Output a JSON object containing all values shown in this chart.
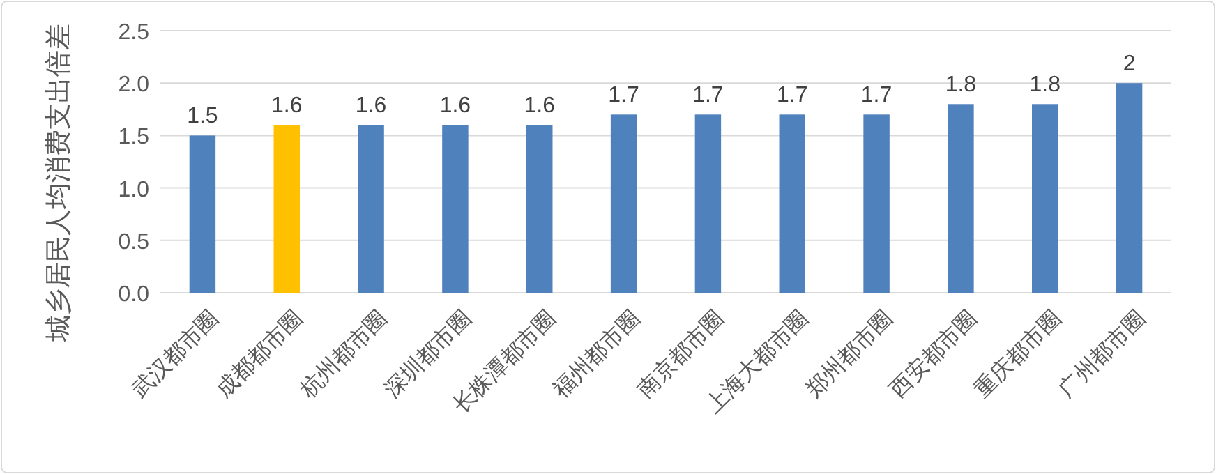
{
  "chart_data": {
    "type": "bar",
    "ylabel": "城乡居民人均消费支出倍差",
    "categories": [
      "武汉都市圈",
      "成都都市圈",
      "杭州都市圈",
      "深圳都市圈",
      "长株潭都市圈",
      "福州都市圈",
      "南京都市圈",
      "上海大都市圈",
      "郑州都市圈",
      "西安都市圈",
      "重庆都市圈",
      "广州都市圈"
    ],
    "values": [
      1.5,
      1.6,
      1.6,
      1.6,
      1.6,
      1.7,
      1.7,
      1.7,
      1.7,
      1.8,
      1.8,
      2
    ],
    "colors": [
      "#4f81bd",
      "#ffc000",
      "#4f81bd",
      "#4f81bd",
      "#4f81bd",
      "#4f81bd",
      "#4f81bd",
      "#4f81bd",
      "#4f81bd",
      "#4f81bd",
      "#4f81bd",
      "#4f81bd"
    ],
    "ylim": [
      0,
      2.5
    ],
    "yticks": [
      {
        "value": 0,
        "label": "0.0"
      },
      {
        "value": 0.5,
        "label": "0.5"
      },
      {
        "value": 1,
        "label": "1.0"
      },
      {
        "value": 1.5,
        "label": "1.5"
      },
      {
        "value": 2,
        "label": "2.0"
      },
      {
        "value": 2.5,
        "label": "2.5"
      }
    ],
    "grid": "y",
    "data_labels": true
  }
}
